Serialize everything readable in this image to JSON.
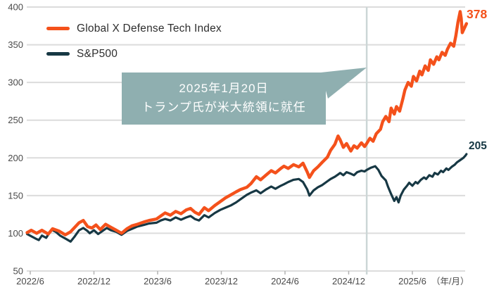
{
  "chart_data": {
    "type": "line",
    "title": "",
    "legend_position": "top-left",
    "grid": true,
    "x_axis": {
      "unit": "months since 2022-06",
      "min": -0.4,
      "max": 41.3,
      "ticks": [
        {
          "t": 0,
          "label": "2022/6"
        },
        {
          "t": 6,
          "label": "2022/12"
        },
        {
          "t": 12,
          "label": "2023/6"
        },
        {
          "t": 18,
          "label": "2023/12"
        },
        {
          "t": 24,
          "label": "2024/6"
        },
        {
          "t": 30,
          "label": "2024/12"
        },
        {
          "t": 36,
          "label": "2025/6"
        }
      ],
      "unit_label": "（年/月）"
    },
    "y_axis": {
      "min": 50,
      "max": 400,
      "ticks": [
        400,
        350,
        300,
        250,
        200,
        150,
        100,
        50
      ]
    },
    "event_line": {
      "t": 31.7,
      "date": "2025-01-20"
    },
    "colors": {
      "grid": "#dcdcdc",
      "tick": "#b3b3b3",
      "axis_text": "#4a4a4a",
      "event_line": "#ccd6d6"
    },
    "end_labels": {
      "defense_tech": "378",
      "sp500": "205"
    },
    "series": [
      {
        "name": "S&P500",
        "color": "#173844",
        "width": 3.2,
        "points": [
          [
            -0.3,
            99
          ],
          [
            0.1,
            96
          ],
          [
            0.5,
            93
          ],
          [
            0.8,
            91
          ],
          [
            1.1,
            97
          ],
          [
            1.5,
            94
          ],
          [
            2.0,
            105
          ],
          [
            2.4,
            102
          ],
          [
            2.8,
            97
          ],
          [
            3.3,
            93
          ],
          [
            3.8,
            89
          ],
          [
            4.2,
            96
          ],
          [
            4.6,
            104
          ],
          [
            5.0,
            107
          ],
          [
            5.4,
            103
          ],
          [
            5.6,
            100
          ],
          [
            6.0,
            104
          ],
          [
            6.4,
            99
          ],
          [
            6.8,
            103
          ],
          [
            7.2,
            107
          ],
          [
            7.6,
            104
          ],
          [
            8.1,
            102
          ],
          [
            8.6,
            98
          ],
          [
            9.1,
            103
          ],
          [
            9.6,
            106
          ],
          [
            10.1,
            109
          ],
          [
            10.7,
            111
          ],
          [
            11.2,
            113
          ],
          [
            11.9,
            114
          ],
          [
            12.3,
            117
          ],
          [
            12.7,
            119
          ],
          [
            13.2,
            117
          ],
          [
            13.7,
            121
          ],
          [
            14.2,
            118
          ],
          [
            14.7,
            121
          ],
          [
            15.1,
            123
          ],
          [
            15.5,
            119
          ],
          [
            15.9,
            117
          ],
          [
            16.4,
            124
          ],
          [
            16.8,
            121
          ],
          [
            17.4,
            127
          ],
          [
            17.9,
            131
          ],
          [
            18.4,
            134
          ],
          [
            18.9,
            137
          ],
          [
            19.4,
            141
          ],
          [
            19.8,
            145
          ],
          [
            20.4,
            151
          ],
          [
            20.8,
            154
          ],
          [
            21.3,
            157
          ],
          [
            21.7,
            153
          ],
          [
            22.2,
            158
          ],
          [
            22.7,
            162
          ],
          [
            23.1,
            159
          ],
          [
            23.6,
            163
          ],
          [
            23.9,
            165
          ],
          [
            24.3,
            168
          ],
          [
            24.8,
            171
          ],
          [
            25.3,
            172
          ],
          [
            25.7,
            168
          ],
          [
            26.1,
            158
          ],
          [
            26.3,
            150
          ],
          [
            26.7,
            157
          ],
          [
            27.1,
            161
          ],
          [
            27.5,
            164
          ],
          [
            28.0,
            169
          ],
          [
            28.3,
            172
          ],
          [
            28.7,
            175
          ],
          [
            29.0,
            178
          ],
          [
            29.2,
            180
          ],
          [
            29.5,
            177
          ],
          [
            29.8,
            181
          ],
          [
            30.2,
            179
          ],
          [
            30.5,
            177
          ],
          [
            30.8,
            181
          ],
          [
            31.2,
            183
          ],
          [
            31.5,
            182
          ],
          [
            31.7,
            184
          ],
          [
            32.1,
            187
          ],
          [
            32.5,
            189
          ],
          [
            32.8,
            184
          ],
          [
            33.1,
            176
          ],
          [
            33.5,
            170
          ],
          [
            33.7,
            162
          ],
          [
            34.0,
            152
          ],
          [
            34.3,
            143
          ],
          [
            34.5,
            148
          ],
          [
            34.7,
            141
          ],
          [
            34.9,
            150
          ],
          [
            35.2,
            158
          ],
          [
            35.5,
            163
          ],
          [
            35.7,
            167
          ],
          [
            36.0,
            163
          ],
          [
            36.3,
            168
          ],
          [
            36.5,
            166
          ],
          [
            36.8,
            171
          ],
          [
            37.1,
            174
          ],
          [
            37.3,
            172
          ],
          [
            37.6,
            177
          ],
          [
            37.9,
            175
          ],
          [
            38.1,
            180
          ],
          [
            38.4,
            178
          ],
          [
            38.7,
            183
          ],
          [
            38.9,
            181
          ],
          [
            39.2,
            186
          ],
          [
            39.4,
            184
          ],
          [
            39.7,
            188
          ],
          [
            40.0,
            191
          ],
          [
            40.2,
            194
          ],
          [
            40.5,
            197
          ],
          [
            40.8,
            200
          ],
          [
            41.0,
            203
          ],
          [
            41.1,
            205
          ]
        ]
      },
      {
        "name": "Global X Defense Tech Index",
        "color": "#f4511b",
        "width": 4.4,
        "points": [
          [
            -0.3,
            101
          ],
          [
            0.1,
            104
          ],
          [
            0.6,
            100
          ],
          [
            1.1,
            104
          ],
          [
            1.7,
            99
          ],
          [
            2.1,
            106
          ],
          [
            2.7,
            103
          ],
          [
            3.3,
            98
          ],
          [
            3.8,
            102
          ],
          [
            4.2,
            108
          ],
          [
            4.6,
            114
          ],
          [
            5.0,
            117
          ],
          [
            5.4,
            109
          ],
          [
            5.8,
            107
          ],
          [
            6.2,
            111
          ],
          [
            6.6,
            105
          ],
          [
            7.1,
            112
          ],
          [
            7.6,
            108
          ],
          [
            8.1,
            104
          ],
          [
            8.6,
            100
          ],
          [
            9.1,
            106
          ],
          [
            9.6,
            110
          ],
          [
            10.1,
            112
          ],
          [
            10.7,
            115
          ],
          [
            11.2,
            117
          ],
          [
            11.9,
            119
          ],
          [
            12.3,
            123
          ],
          [
            12.7,
            127
          ],
          [
            13.2,
            124
          ],
          [
            13.7,
            129
          ],
          [
            14.2,
            126
          ],
          [
            14.7,
            131
          ],
          [
            15.1,
            133
          ],
          [
            15.5,
            128
          ],
          [
            15.9,
            125
          ],
          [
            16.4,
            134
          ],
          [
            16.8,
            130
          ],
          [
            17.4,
            137
          ],
          [
            17.9,
            142
          ],
          [
            18.4,
            147
          ],
          [
            18.9,
            151
          ],
          [
            19.4,
            155
          ],
          [
            19.8,
            158
          ],
          [
            20.4,
            161
          ],
          [
            20.8,
            166
          ],
          [
            21.3,
            175
          ],
          [
            21.7,
            171
          ],
          [
            22.2,
            177
          ],
          [
            22.7,
            183
          ],
          [
            23.1,
            180
          ],
          [
            23.6,
            186
          ],
          [
            23.9,
            189
          ],
          [
            24.3,
            186
          ],
          [
            24.8,
            191
          ],
          [
            25.3,
            188
          ],
          [
            25.7,
            193
          ],
          [
            26.1,
            181
          ],
          [
            26.3,
            174
          ],
          [
            26.7,
            183
          ],
          [
            27.1,
            188
          ],
          [
            27.5,
            194
          ],
          [
            28.0,
            201
          ],
          [
            28.3,
            210
          ],
          [
            28.7,
            218
          ],
          [
            29.0,
            229
          ],
          [
            29.2,
            224
          ],
          [
            29.5,
            214
          ],
          [
            29.8,
            219
          ],
          [
            30.2,
            209
          ],
          [
            30.5,
            216
          ],
          [
            30.8,
            213
          ],
          [
            31.2,
            220
          ],
          [
            31.5,
            215
          ],
          [
            31.7,
            219
          ],
          [
            32.0,
            226
          ],
          [
            32.3,
            222
          ],
          [
            32.6,
            232
          ],
          [
            33.0,
            238
          ],
          [
            33.2,
            248
          ],
          [
            33.5,
            255
          ],
          [
            33.8,
            248
          ],
          [
            34.0,
            266
          ],
          [
            34.3,
            258
          ],
          [
            34.5,
            268
          ],
          [
            34.8,
            262
          ],
          [
            35.1,
            278
          ],
          [
            35.3,
            290
          ],
          [
            35.6,
            300
          ],
          [
            35.9,
            295
          ],
          [
            36.1,
            308
          ],
          [
            36.4,
            302
          ],
          [
            36.7,
            315
          ],
          [
            36.9,
            310
          ],
          [
            37.2,
            322
          ],
          [
            37.5,
            316
          ],
          [
            37.7,
            330
          ],
          [
            38.0,
            324
          ],
          [
            38.3,
            334
          ],
          [
            38.5,
            330
          ],
          [
            38.8,
            340
          ],
          [
            39.1,
            336
          ],
          [
            39.3,
            344
          ],
          [
            39.6,
            352
          ],
          [
            39.9,
            348
          ],
          [
            40.1,
            362
          ],
          [
            40.3,
            380
          ],
          [
            40.5,
            394
          ],
          [
            40.6,
            385
          ],
          [
            40.7,
            366
          ],
          [
            40.9,
            372
          ],
          [
            41.1,
            378
          ]
        ]
      }
    ]
  },
  "legend": {
    "defense_tech_label": "Global X Defense Tech Index",
    "sp500_label": "S&P500"
  },
  "callout": {
    "bg": "#8fafb0",
    "line1": "2025年1月20日",
    "line2": "トランプ氏が米大統領に就任"
  }
}
